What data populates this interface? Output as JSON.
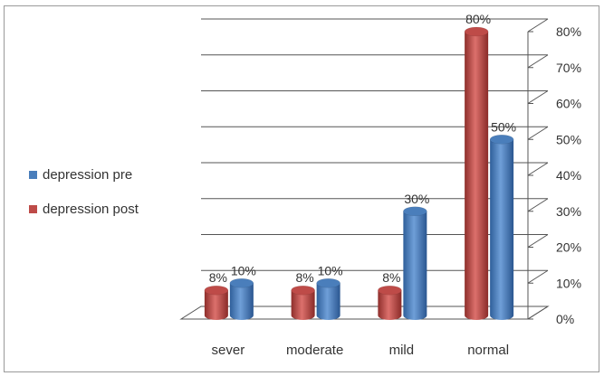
{
  "chart_data": {
    "type": "bar",
    "categories": [
      "sever",
      "moderate",
      "mild",
      "normal"
    ],
    "series": [
      {
        "name": "depression pre",
        "values": [
          10,
          10,
          30,
          50
        ],
        "labels": [
          "10%",
          "10%",
          "30%",
          "50%"
        ],
        "color": "#4a7ebb"
      },
      {
        "name": "depression post",
        "values": [
          8,
          8,
          8,
          80
        ],
        "labels": [
          "8%",
          "8%",
          "8%",
          "80%"
        ],
        "color": "#be4b48"
      }
    ],
    "ylim": [
      0,
      80
    ],
    "yticks": [
      "0%",
      "10%",
      "20%",
      "30%",
      "40%",
      "50%",
      "60%",
      "70%",
      "80%"
    ],
    "grid": true,
    "legend_position": "left",
    "style": "3d-cylinder"
  }
}
